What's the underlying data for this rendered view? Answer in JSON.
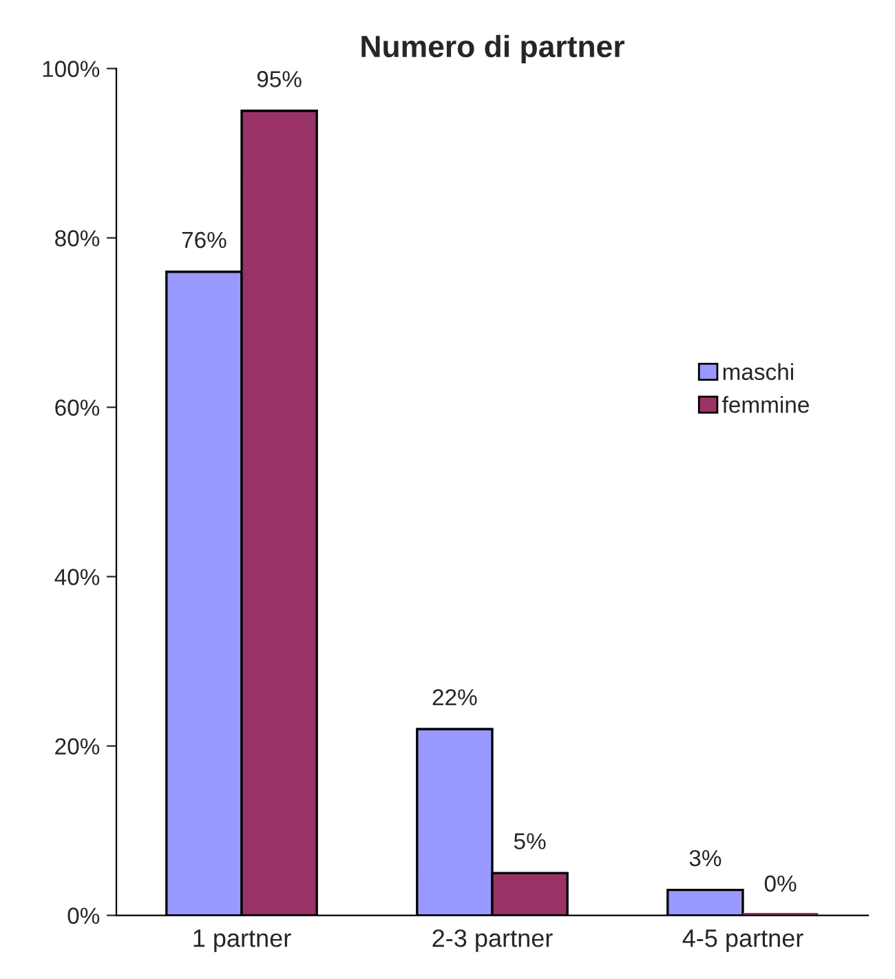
{
  "chart_data": {
    "type": "bar",
    "title": "Numero di partner",
    "categories": [
      "1 partner",
      "2-3 partner",
      "4-5 partner"
    ],
    "series": [
      {
        "name": "maschi",
        "color": "#9999ff",
        "values": [
          76,
          22,
          3
        ],
        "value_labels": [
          "76%",
          "22%",
          "3%"
        ]
      },
      {
        "name": "femmine",
        "color": "#993366",
        "values": [
          95,
          5,
          0
        ],
        "value_labels": [
          "95%",
          "5%",
          "0%"
        ]
      }
    ],
    "ylim": [
      0,
      100
    ],
    "yticks": [
      {
        "value": 0,
        "label": "0%"
      },
      {
        "value": 20,
        "label": "20%"
      },
      {
        "value": 40,
        "label": "40%"
      },
      {
        "value": 60,
        "label": "60%"
      },
      {
        "value": 80,
        "label": "80%"
      },
      {
        "value": 100,
        "label": "100%"
      }
    ],
    "grid": false,
    "legend": "right"
  }
}
